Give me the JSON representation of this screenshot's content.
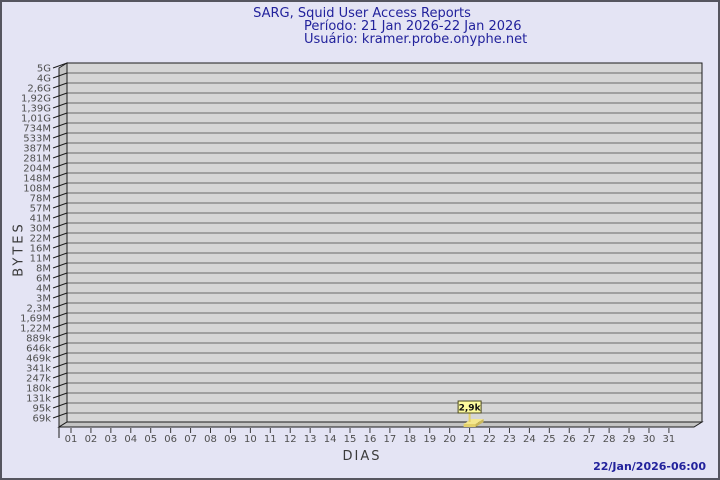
{
  "header": {
    "title": "SARG, Squid User Access Reports",
    "period": "Período: 21 Jan 2026-22 Jan 2026",
    "user": "Usuário: kramer.probe.onyphe.net"
  },
  "footer": {
    "generated": "22/Jan/2026-06:00"
  },
  "chart_data": {
    "type": "bar",
    "title": "SARG, Squid User Access Reports",
    "subtitle": "Período: 21 Jan 2026-22 Jan 2026",
    "user_line": "Usuário: kramer.probe.onyphe.net",
    "xlabel": "DIAS",
    "ylabel": "BYTES",
    "grid": true,
    "legend_position": "none",
    "style": "3d-bar",
    "y_axis_ticks": [
      "5G",
      "4G",
      "2,6G",
      "1,92G",
      "1,39G",
      "1,01G",
      "734M",
      "533M",
      "387M",
      "281M",
      "204M",
      "148M",
      "108M",
      "78M",
      "57M",
      "41M",
      "30M",
      "22M",
      "16M",
      "11M",
      "8M",
      "6M",
      "4M",
      "3M",
      "2,3M",
      "1,69M",
      "1,22M",
      "889k",
      "646k",
      "469k",
      "341k",
      "247k",
      "180k",
      "131k",
      "95k",
      "69k"
    ],
    "categories": [
      "01",
      "02",
      "03",
      "04",
      "05",
      "06",
      "07",
      "08",
      "09",
      "10",
      "11",
      "12",
      "13",
      "14",
      "15",
      "16",
      "17",
      "18",
      "19",
      "20",
      "21",
      "22",
      "23",
      "24",
      "25",
      "26",
      "27",
      "28",
      "29",
      "30",
      "31"
    ],
    "values": [
      0,
      0,
      0,
      0,
      0,
      0,
      0,
      0,
      0,
      0,
      0,
      0,
      0,
      0,
      0,
      0,
      0,
      0,
      0,
      0,
      2900,
      0,
      0,
      0,
      0,
      0,
      0,
      0,
      0,
      0,
      0
    ],
    "bars": [
      {
        "day": "21",
        "label": "2,9k",
        "value_bytes": 2900
      }
    ],
    "timestamp": "22/Jan/2026-06:00",
    "colors": {
      "page_bg": "#e4e4f4",
      "plot_bg": "#d6d6d6",
      "wall": "#c4c4c4",
      "grid": "#6b6b6b",
      "frame": "#1c1c1c",
      "tick_text": "#4f4f4f",
      "bar_top": "#f4e78e",
      "bar_front": "#e3d06b",
      "bar_side": "#c9b75a",
      "bar_label_bg": "#fdfb9e",
      "bar_label_border": "#4c4a20",
      "title_text": "#22229c"
    }
  }
}
